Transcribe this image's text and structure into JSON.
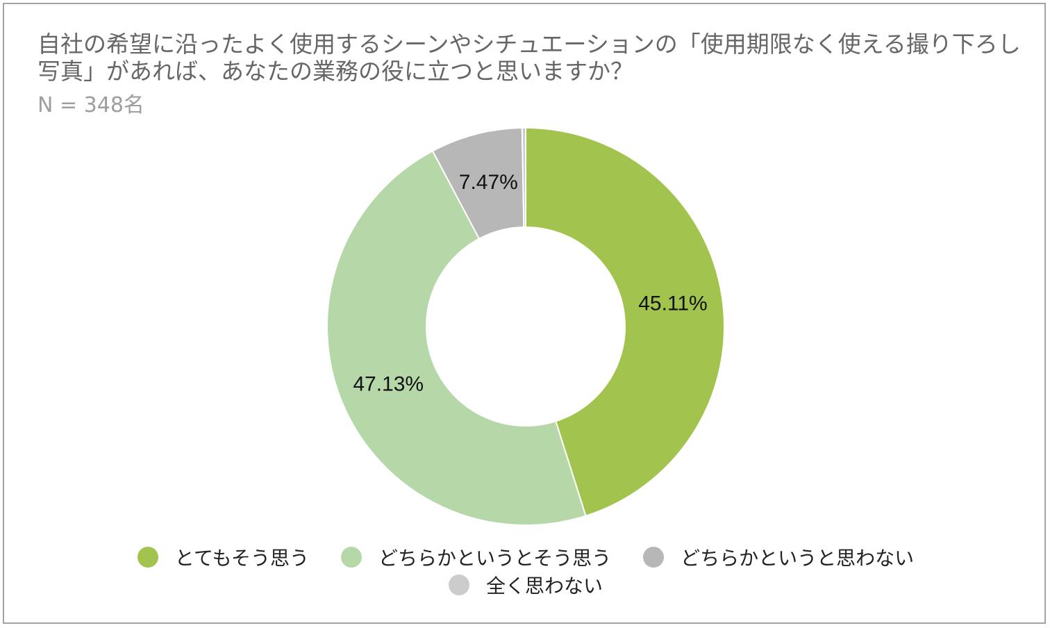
{
  "title": "自社の希望に沿ったよく使用するシーンやシチュエーションの「使用期限なく使える撮り下ろし写真」があれば、あなたの業務の役に立つと思いますか？",
  "subtitle": "N = 348名",
  "chart_data": {
    "type": "pie",
    "style": "donut",
    "start": "top, clockwise",
    "slices": [
      {
        "label": "とてもそう思う",
        "value": 45.11,
        "display": "45.11%",
        "color": "#a2c44f",
        "show_label": true
      },
      {
        "label": "どちらかというとそう思う",
        "value": 47.13,
        "display": "47.13%",
        "color": "#b6d7a8",
        "show_label": true
      },
      {
        "label": "どちらかというと思わない",
        "value": 7.47,
        "display": "7.47%",
        "color": "#b7b7b7",
        "show_label": true
      },
      {
        "label": "全く思わない",
        "value": 0.29,
        "display": "",
        "color": "#cccccc",
        "show_label": false
      }
    ],
    "legend_position": "bottom"
  },
  "legend": [
    {
      "label": "とてもそう思う",
      "color": "#a2c44f"
    },
    {
      "label": "どちらかというとそう思う",
      "color": "#b6d7a8"
    },
    {
      "label": "どちらかというと思わない",
      "color": "#b7b7b7"
    },
    {
      "label": "全く思わない",
      "color": "#cccccc"
    }
  ]
}
